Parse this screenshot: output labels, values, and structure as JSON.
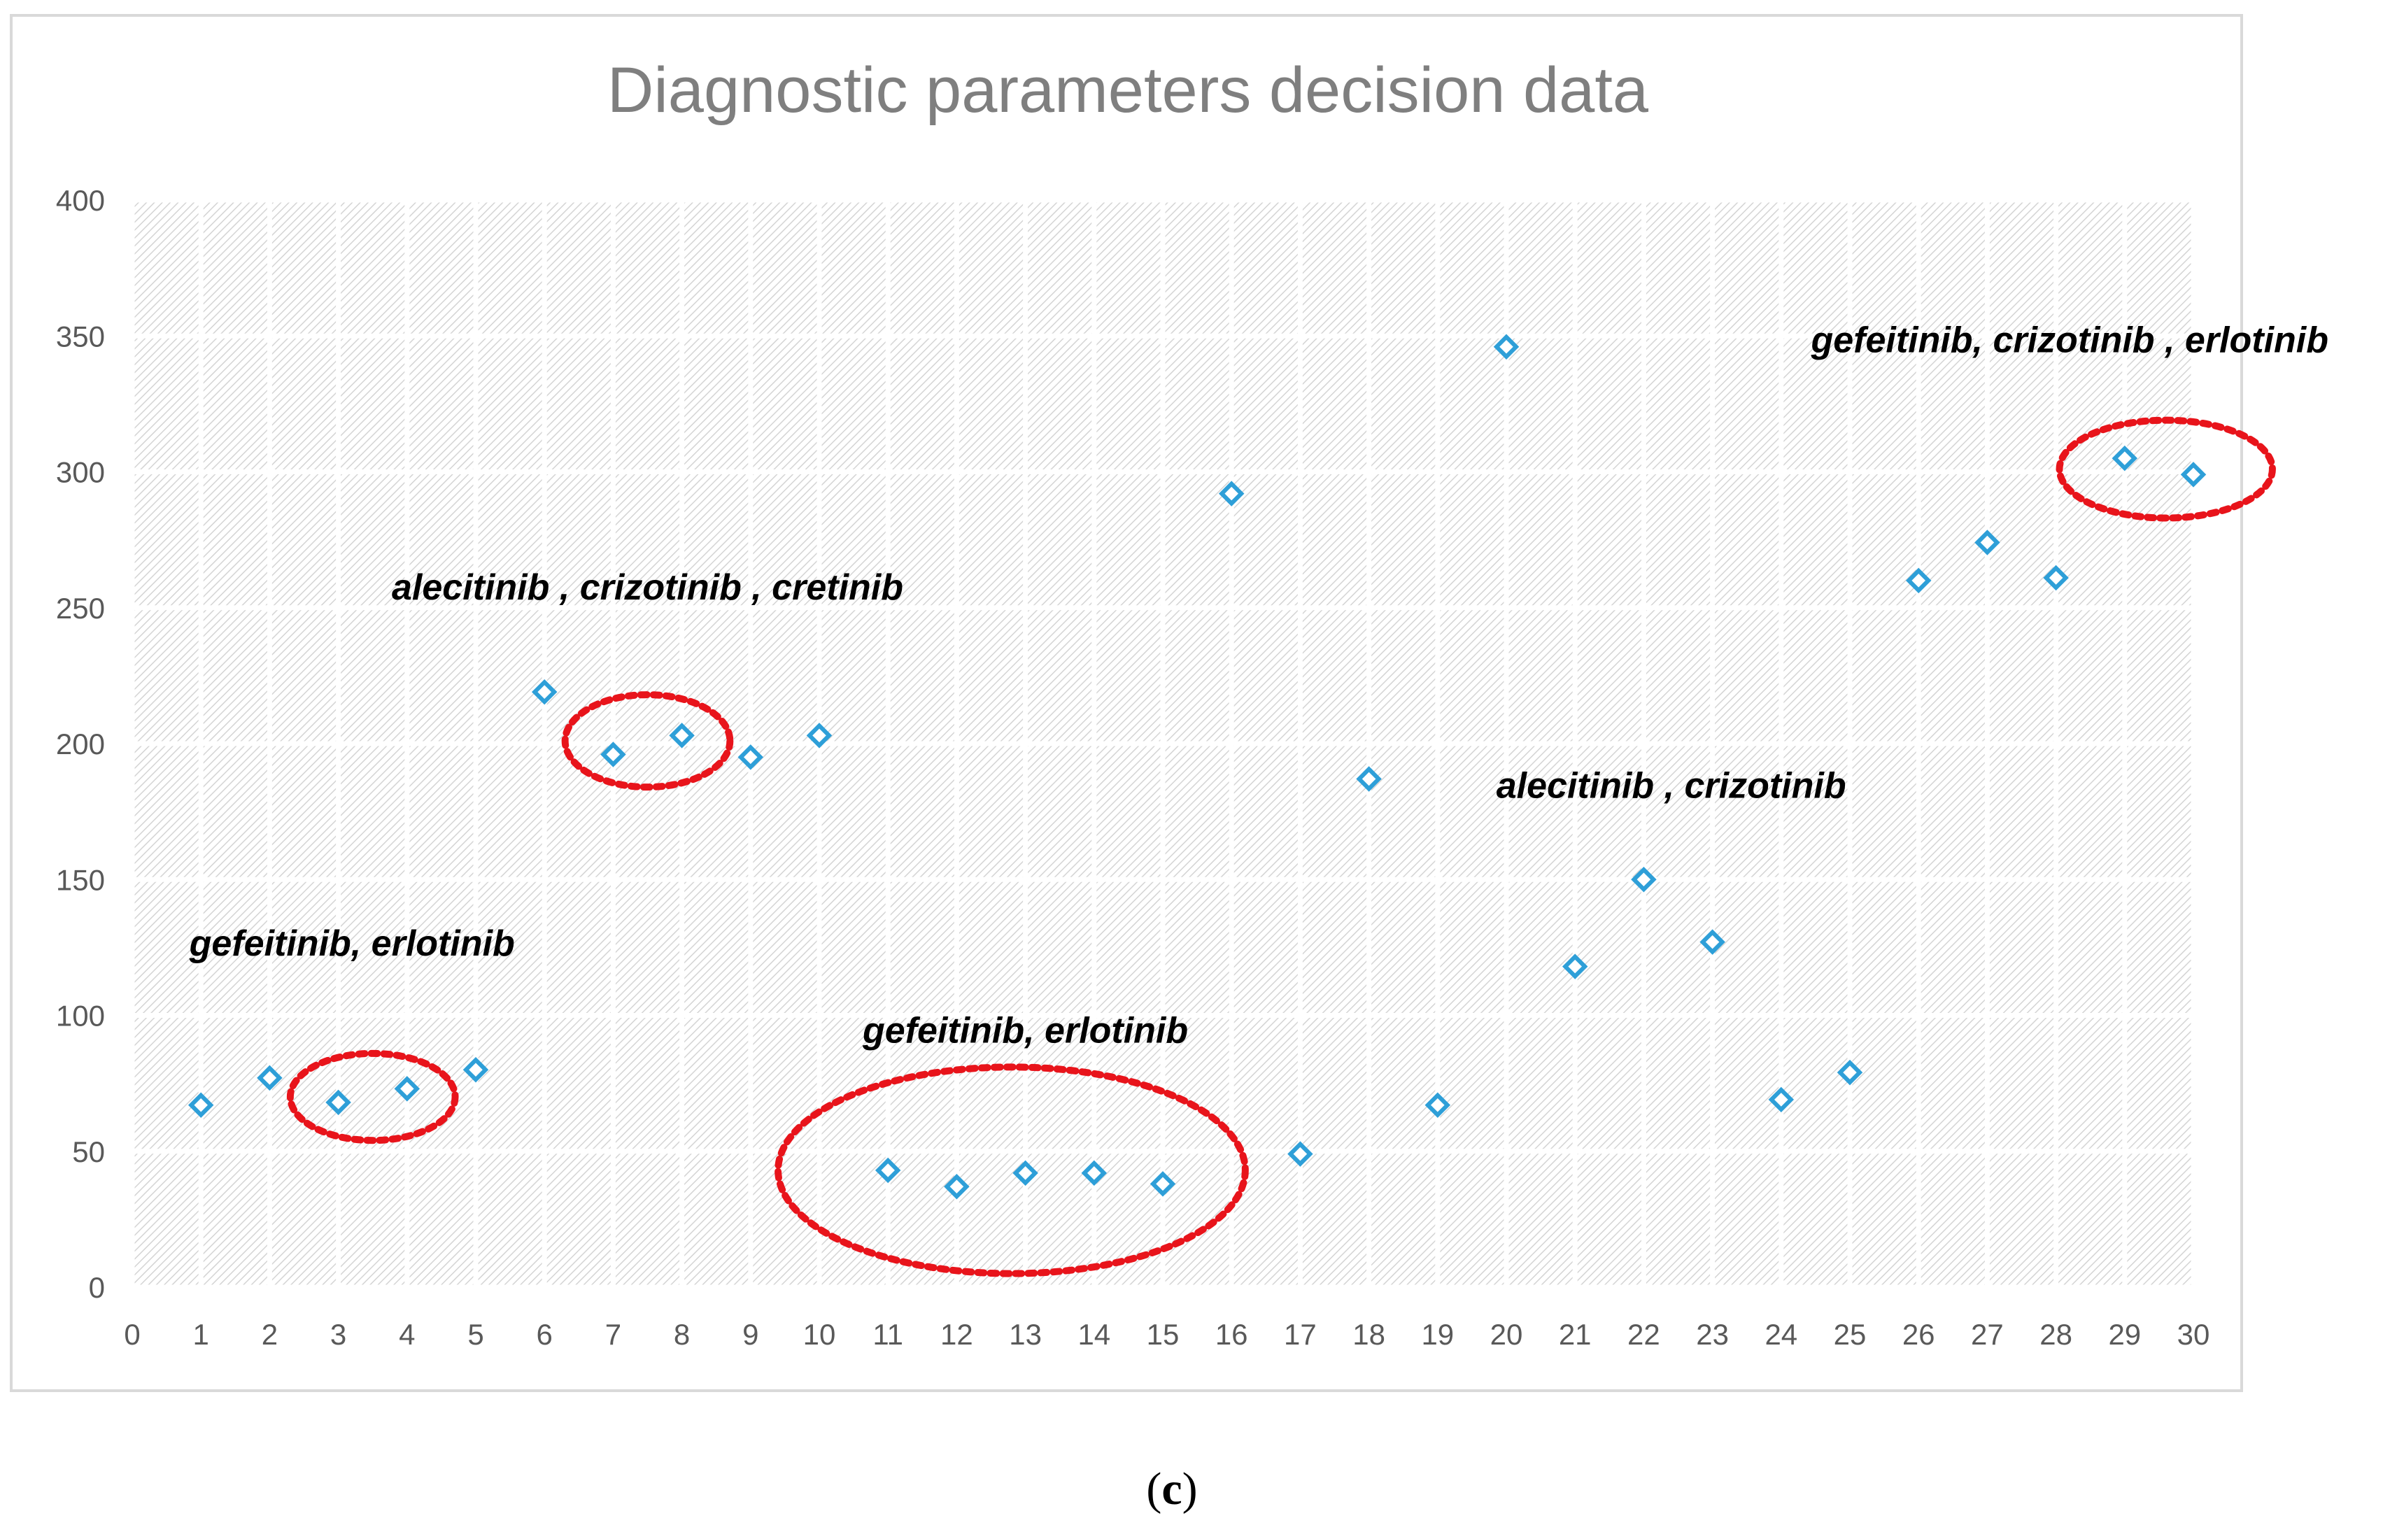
{
  "chart_data": {
    "type": "scatter",
    "title": "Diagnostic parameters decision data",
    "xlabel": "",
    "ylabel": "",
    "xlim": [
      0,
      30
    ],
    "ylim": [
      0,
      400
    ],
    "x_ticks": [
      "0",
      "1",
      "2",
      "3",
      "4",
      "5",
      "6",
      "7",
      "8",
      "9",
      "10",
      "11",
      "12",
      "13",
      "14",
      "15",
      "16",
      "17",
      "18",
      "19",
      "20",
      "21",
      "22",
      "23",
      "24",
      "25",
      "26",
      "27",
      "28",
      "29",
      "30"
    ],
    "y_ticks": [
      "0",
      "50",
      "100",
      "150",
      "200",
      "250",
      "300",
      "350",
      "400"
    ],
    "series": [
      {
        "name": "Diagnostic parameters",
        "color": "#2e9fd8",
        "marker": "diamond",
        "x": [
          1,
          2,
          3,
          4,
          5,
          6,
          7,
          8,
          9,
          10,
          11,
          12,
          13,
          14,
          15,
          16,
          17,
          18,
          19,
          20,
          21,
          22,
          23,
          24,
          25,
          26,
          27,
          28,
          29,
          30
        ],
        "y": [
          67,
          77,
          68,
          73,
          80,
          219,
          196,
          203,
          195,
          203,
          43,
          37,
          42,
          42,
          38,
          292,
          49,
          187,
          67,
          346,
          118,
          150,
          127,
          69,
          79,
          260,
          274,
          261,
          305,
          299
        ]
      }
    ],
    "annotations": [
      {
        "text": "gefeitinib, erlotinib",
        "x": 3.2,
        "y": 122
      },
      {
        "text": "alecitinib , crizotinib , cretinib",
        "x": 7.5,
        "y": 253
      },
      {
        "text": "gefeitinib, erlotinib",
        "x": 13.0,
        "y": 90
      },
      {
        "text": "alecitinib , crizotinib",
        "x": 22.4,
        "y": 180
      },
      {
        "text": "gefeitinib, crizotinib , erlotinib",
        "x": 28.2,
        "y": 344
      }
    ],
    "highlight_ellipses": [
      {
        "label": "points 3-4",
        "cx": 3.5,
        "cy": 70,
        "rx": 1.2,
        "ry": 16
      },
      {
        "label": "points 7-8",
        "cx": 7.5,
        "cy": 201,
        "rx": 1.2,
        "ry": 17
      },
      {
        "label": "points 11-15",
        "cx": 12.8,
        "cy": 43,
        "rx": 3.4,
        "ry": 38
      },
      {
        "label": "points 29-30",
        "cx": 29.6,
        "cy": 301,
        "rx": 1.55,
        "ry": 18
      }
    ],
    "highlight_color": "#e8141b",
    "grid": true,
    "legend": "none"
  },
  "caption": {
    "open": "(",
    "letter": "c",
    "close": ")"
  }
}
